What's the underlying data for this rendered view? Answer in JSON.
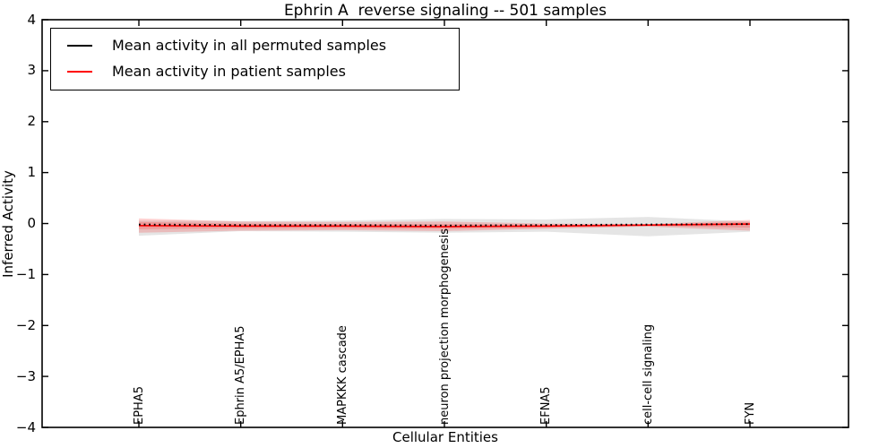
{
  "title": "Ephrin A  reverse signaling -- 501 samples",
  "legend": {
    "items": [
      {
        "label": "Mean activity in all permuted samples",
        "color": "#000000"
      },
      {
        "label": "Mean activity in patient samples",
        "color": "#ff0000"
      }
    ]
  },
  "chart_data": {
    "type": "line",
    "title": "Ephrin A  reverse signaling -- 501 samples",
    "xlabel": "Cellular Entities",
    "ylabel": "Inferred Activity",
    "ylim": [
      -4,
      4
    ],
    "yticks": [
      4,
      3,
      2,
      1,
      0,
      -1,
      -2,
      -3,
      -4
    ],
    "grid": false,
    "legend_position": "upper left",
    "categories": [
      "EPHA5",
      "Ephrin A5/EPHA5",
      "MAPKKK cascade",
      "neuron projection morphogenesis",
      "EFNA5",
      "cell-cell signaling",
      "FYN"
    ],
    "series": [
      {
        "name": "Mean activity in all permuted samples",
        "color": "#000000",
        "style": "dotted",
        "values": [
          -0.02,
          -0.03,
          -0.03,
          -0.04,
          -0.03,
          -0.02,
          -0.01
        ],
        "band_upper": [
          0.06,
          0.05,
          0.06,
          0.09,
          0.08,
          0.13,
          0.04
        ],
        "band_lower": [
          -0.24,
          -0.15,
          -0.16,
          -0.18,
          -0.16,
          -0.25,
          -0.16
        ],
        "band_color": "rgba(0,0,0,0.10)"
      },
      {
        "name": "Mean activity in patient samples",
        "color": "#ff0000",
        "style": "solid",
        "values": [
          -0.04,
          -0.05,
          -0.05,
          -0.06,
          -0.05,
          -0.03,
          -0.01
        ],
        "band_upper": [
          0.1,
          0.04,
          0.03,
          0.04,
          0.0,
          -0.01,
          0.07
        ],
        "band_lower": [
          -0.18,
          -0.14,
          -0.13,
          -0.15,
          -0.1,
          -0.06,
          -0.14
        ],
        "band_inner_upper": [
          0.03,
          0.0,
          -0.01,
          -0.01,
          -0.02,
          -0.02,
          0.03
        ],
        "band_inner_lower": [
          -0.11,
          -0.09,
          -0.09,
          -0.1,
          -0.08,
          -0.05,
          -0.08
        ],
        "band_color": "rgba(255,0,0,0.18)"
      }
    ]
  }
}
